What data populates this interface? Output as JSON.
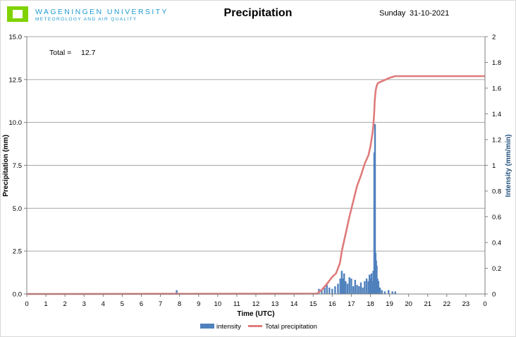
{
  "header": {
    "logo_line1": "WAGENINGEN UNIVERSITY",
    "logo_line2": "METEOROLOGY AND AIR QUALITY",
    "day": "Sunday",
    "date": "31-10-2021"
  },
  "colors": {
    "logo_green": "#7fd300",
    "logo_blue": "#1f9bd0",
    "intensity": "#4f81bd",
    "total": "#e07b7b",
    "ylabel_right": "#1f4e79"
  },
  "chart_data": {
    "type": "bar",
    "title": "Precipitation",
    "xlabel": "Time (UTC)",
    "ylabel": "Precipitation (mm)",
    "ylabel_right": "Intensity (mm/min)",
    "xlim": [
      0,
      24
    ],
    "ylim": [
      0,
      15
    ],
    "ylim_right": [
      0,
      2
    ],
    "x_ticks": [
      "0",
      "1",
      "2",
      "3",
      "4",
      "5",
      "6",
      "7",
      "8",
      "9",
      "10",
      "11",
      "12",
      "13",
      "14",
      "15",
      "16",
      "17",
      "18",
      "19",
      "20",
      "21",
      "22",
      "23",
      "0"
    ],
    "y_ticks": [
      "0.0",
      "2.5",
      "5.0",
      "7.5",
      "10.0",
      "12.5",
      "15.0"
    ],
    "y_ticks_right": [
      "0",
      "0.2",
      "0.4",
      "0.6",
      "0.8",
      "1",
      "1.2",
      "1.4",
      "1.6",
      "1.8",
      "2"
    ],
    "grid": "horizontal",
    "legend_position": "bottom",
    "annotation": {
      "label": "Total =",
      "value": "12.7"
    },
    "series": [
      {
        "name": "intensity",
        "kind": "bar",
        "axis": "right",
        "x": [
          7.85,
          15.3,
          15.45,
          15.6,
          15.72,
          15.85,
          16.0,
          16.15,
          16.3,
          16.42,
          16.5,
          16.55,
          16.62,
          16.7,
          16.8,
          16.9,
          17.0,
          17.1,
          17.2,
          17.3,
          17.4,
          17.5,
          17.6,
          17.7,
          17.8,
          17.9,
          17.95,
          18.0,
          18.05,
          18.1,
          18.15,
          18.2,
          18.24,
          18.27,
          18.3,
          18.33,
          18.37,
          18.42,
          18.5,
          18.6,
          18.75,
          18.95,
          19.15,
          19.3
        ],
        "values": [
          0.03,
          0.04,
          0.03,
          0.05,
          0.07,
          0.05,
          0.04,
          0.06,
          0.08,
          0.12,
          0.18,
          0.12,
          0.16,
          0.1,
          0.08,
          0.13,
          0.12,
          0.06,
          0.11,
          0.07,
          0.06,
          0.09,
          0.05,
          0.1,
          0.12,
          0.1,
          0.15,
          0.12,
          0.16,
          0.1,
          0.18,
          1.1,
          1.32,
          0.32,
          0.26,
          0.22,
          0.12,
          0.1,
          0.05,
          0.03,
          0.02,
          0.03,
          0.02,
          0.02
        ]
      },
      {
        "name": "Total precipitation",
        "kind": "line",
        "axis": "left",
        "x": [
          0,
          15.2,
          15.5,
          15.8,
          16.0,
          16.2,
          16.4,
          16.5,
          16.7,
          16.9,
          17.1,
          17.3,
          17.5,
          17.7,
          17.9,
          18.0,
          18.1,
          18.15,
          18.2,
          18.22,
          18.25,
          18.28,
          18.3,
          18.35,
          18.4,
          18.5,
          18.7,
          19.0,
          19.3,
          24.0
        ],
        "values": [
          0,
          0.02,
          0.3,
          0.7,
          1.0,
          1.2,
          1.8,
          2.5,
          3.5,
          4.5,
          5.4,
          6.3,
          6.9,
          7.6,
          8.1,
          8.6,
          9.3,
          9.8,
          10.6,
          11.2,
          11.6,
          11.9,
          12.0,
          12.2,
          12.3,
          12.35,
          12.45,
          12.6,
          12.7,
          12.7
        ]
      }
    ]
  }
}
